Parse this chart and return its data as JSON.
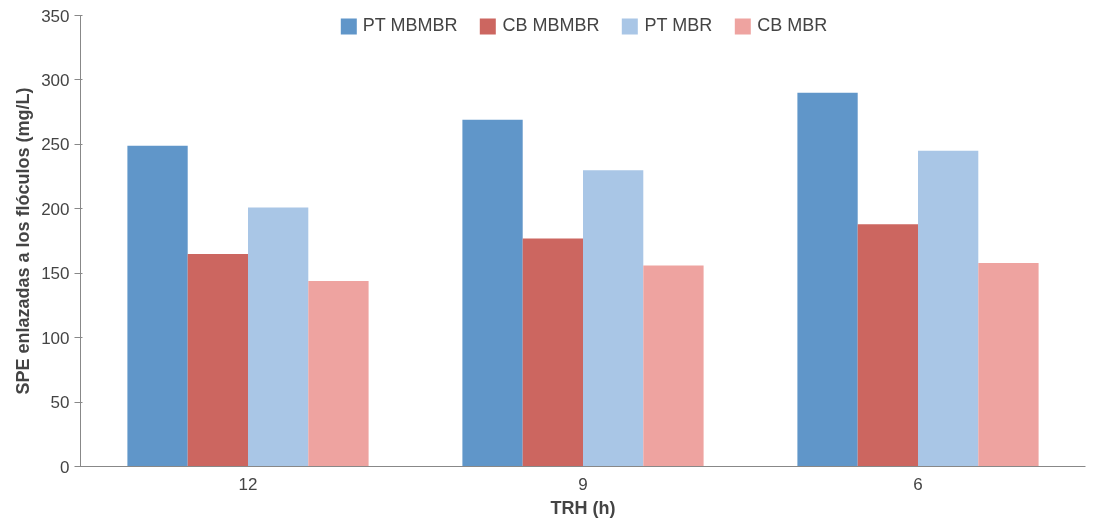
{
  "chart_data": {
    "type": "bar",
    "xlabel": "TRH (h)",
    "ylabel": "SPE enlazadas a los flóculos (mg/L)",
    "categories": [
      "12",
      "9",
      "6"
    ],
    "series": [
      {
        "name": "PT MBMBR",
        "color": "#6096c9",
        "values": [
          249,
          269,
          290
        ]
      },
      {
        "name": "CB MBMBR",
        "color": "#cc6660",
        "values": [
          165,
          177,
          188
        ]
      },
      {
        "name": "PT MBR",
        "color": "#a9c6e6",
        "values": [
          201,
          230,
          245
        ]
      },
      {
        "name": "CB MBR",
        "color": "#eea3a0",
        "values": [
          144,
          156,
          158
        ]
      }
    ],
    "ylim": [
      0,
      350
    ],
    "yticks": [
      0,
      50,
      100,
      150,
      200,
      250,
      300,
      350
    ],
    "grid": false,
    "legend": "top"
  }
}
